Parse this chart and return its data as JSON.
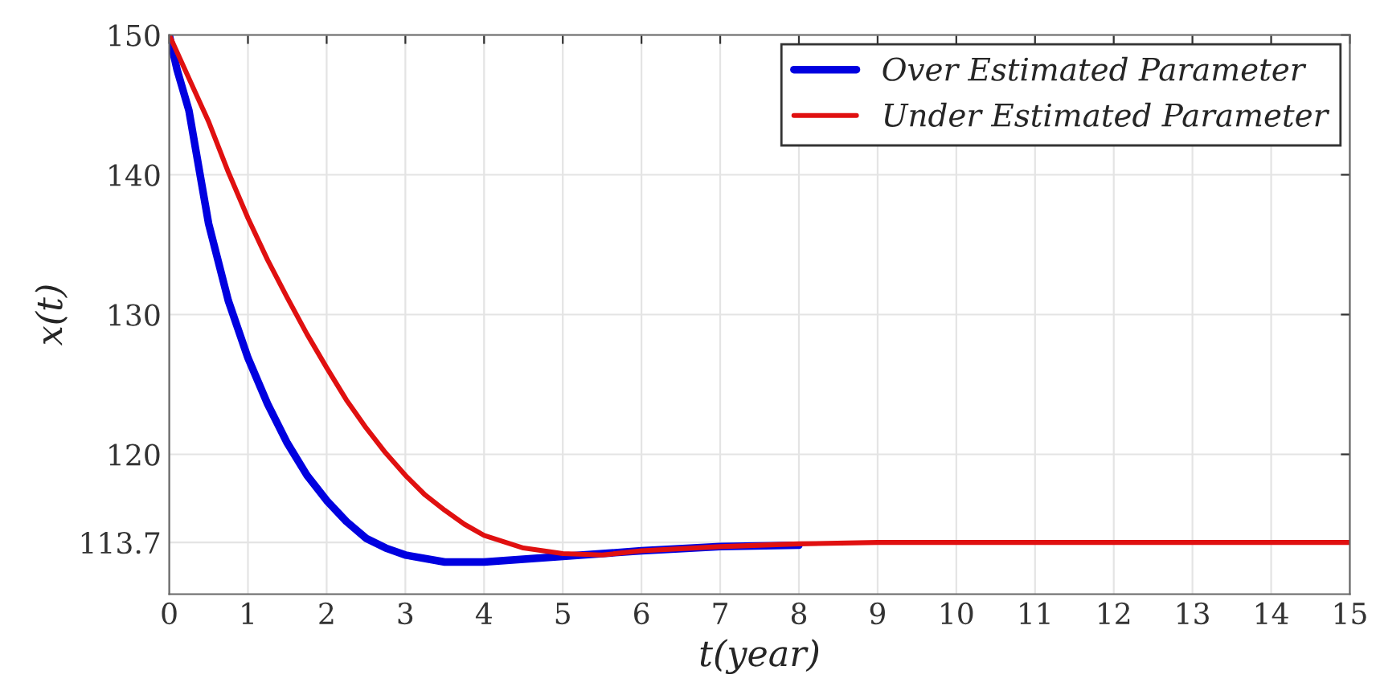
{
  "chart_data": {
    "type": "line",
    "xlabel": "t(year)",
    "ylabel": "x(t)",
    "xlim": [
      0,
      15
    ],
    "ylim": [
      110,
      150
    ],
    "xticks": [
      0,
      1,
      2,
      3,
      4,
      5,
      6,
      7,
      8,
      9,
      10,
      11,
      12,
      13,
      14,
      15
    ],
    "yticks": [
      113.7,
      120,
      130,
      140,
      150
    ],
    "grid": true,
    "legend": "top right",
    "line_style": "solid",
    "marker": "none",
    "series": [
      {
        "name": "Over Estimated Parameter",
        "color": "#0000e0",
        "x": [
          0,
          0.1,
          0.25,
          0.5,
          0.75,
          1,
          1.25,
          1.5,
          1.75,
          2,
          2.25,
          2.5,
          2.75,
          3,
          3.5,
          4,
          5,
          6,
          7,
          8
        ],
        "values": [
          150,
          147.5,
          144.6,
          136.5,
          131.0,
          126.9,
          123.6,
          120.8,
          118.5,
          116.7,
          115.2,
          114.0,
          113.3,
          112.8,
          112.3,
          112.3,
          112.7,
          113.1,
          113.4,
          113.5
        ]
      },
      {
        "name": "Under Estimated Parameter",
        "color": "#e01010",
        "x": [
          0,
          0.25,
          0.5,
          0.75,
          1,
          1.25,
          1.5,
          1.75,
          2,
          2.25,
          2.5,
          2.75,
          3,
          3.25,
          3.5,
          3.75,
          4,
          4.5,
          5,
          5.5,
          6,
          7,
          8,
          9,
          10,
          15
        ],
        "values": [
          150,
          146.9,
          143.8,
          140.2,
          136.9,
          133.9,
          131.2,
          128.6,
          126.2,
          123.9,
          121.9,
          120.1,
          118.5,
          117.1,
          116.0,
          115.0,
          114.2,
          113.3,
          112.9,
          112.8,
          113.1,
          113.4,
          113.6,
          113.7,
          113.7,
          113.7
        ]
      }
    ]
  }
}
